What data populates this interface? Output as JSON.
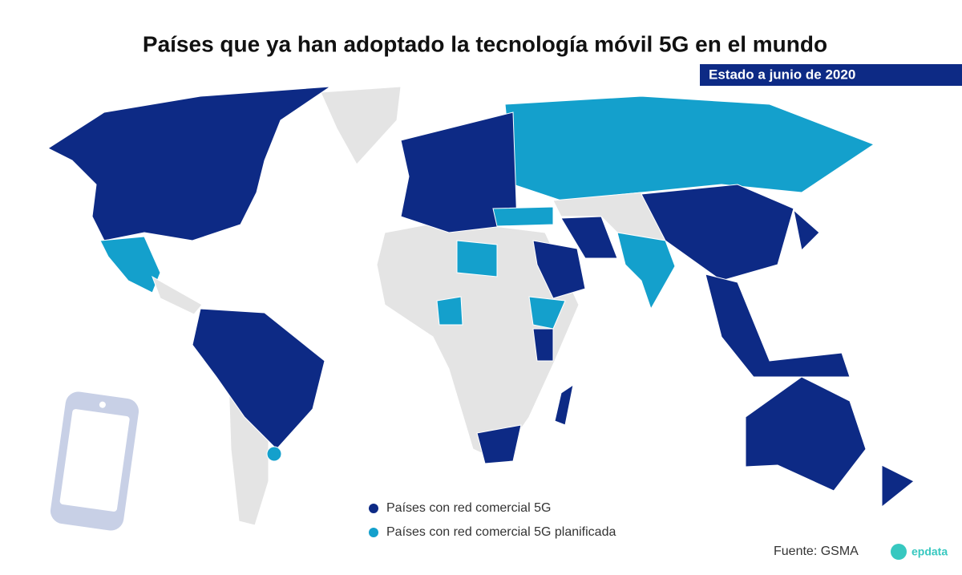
{
  "header": {
    "title": "Países que ya han adoptado la tecnología móvil 5G en el mundo",
    "subtitle": "Estado a junio de 2020"
  },
  "legend": [
    {
      "name": "Países con red comercial 5G",
      "color": "#0d2a85"
    },
    {
      "name": "Países con red comercial 5G planificada",
      "color": "#14a0cc"
    }
  ],
  "footer": {
    "source": "Fuente: GSMA",
    "logo": "epdata"
  }
}
